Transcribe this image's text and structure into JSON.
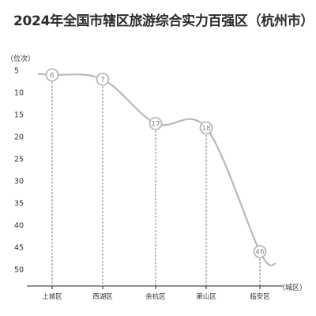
{
  "chart_data": {
    "type": "line",
    "title": "2024年全国市辖区旅游综合实力百强区（杭州市）",
    "xlabel": "（城区）",
    "ylabel": "（位次）",
    "categories": [
      "上城区",
      "西湖区",
      "余杭区",
      "萧山区",
      "临安区"
    ],
    "series": [
      {
        "values": [
          6,
          7,
          17,
          18,
          46
        ]
      }
    ],
    "value_labels": [
      "6",
      "7",
      "17",
      "18",
      "46"
    ],
    "yticks": [
      "5",
      "10",
      "15",
      "20",
      "25",
      "30",
      "35",
      "40",
      "45",
      "50"
    ],
    "ylim": [
      3,
      52
    ],
    "y_inverted": true,
    "grid": false
  }
}
